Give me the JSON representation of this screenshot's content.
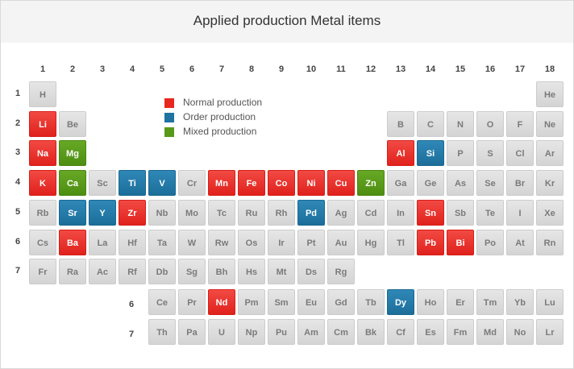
{
  "title": "Applied production Metal items",
  "colors": {
    "normal": "#e8271f",
    "order": "#1e73a1",
    "mixed": "#58991a",
    "default": "#dcdcdc"
  },
  "legend": [
    {
      "key": "normal",
      "label": "Normal production"
    },
    {
      "key": "order",
      "label": "Order production"
    },
    {
      "key": "mixed",
      "label": "Mixed production"
    }
  ],
  "groups": [
    "1",
    "2",
    "3",
    "4",
    "5",
    "6",
    "7",
    "8",
    "9",
    "10",
    "11",
    "12",
    "13",
    "14",
    "15",
    "16",
    "17",
    "18"
  ],
  "periods": [
    "1",
    "2",
    "3",
    "4",
    "5",
    "6",
    "7"
  ],
  "series_labels": [
    "6",
    "7"
  ],
  "main_rows": [
    [
      {
        "g": 1,
        "s": "H"
      },
      {
        "g": 18,
        "s": "He"
      }
    ],
    [
      {
        "g": 1,
        "s": "Li",
        "t": "normal"
      },
      {
        "g": 2,
        "s": "Be"
      },
      {
        "g": 13,
        "s": "B"
      },
      {
        "g": 14,
        "s": "C"
      },
      {
        "g": 15,
        "s": "N"
      },
      {
        "g": 16,
        "s": "O"
      },
      {
        "g": 17,
        "s": "F"
      },
      {
        "g": 18,
        "s": "Ne"
      }
    ],
    [
      {
        "g": 1,
        "s": "Na",
        "t": "normal"
      },
      {
        "g": 2,
        "s": "Mg",
        "t": "mixed"
      },
      {
        "g": 13,
        "s": "Al",
        "t": "normal"
      },
      {
        "g": 14,
        "s": "Si",
        "t": "order"
      },
      {
        "g": 15,
        "s": "P"
      },
      {
        "g": 16,
        "s": "S"
      },
      {
        "g": 17,
        "s": "Cl"
      },
      {
        "g": 18,
        "s": "Ar"
      }
    ],
    [
      {
        "g": 1,
        "s": "K",
        "t": "normal"
      },
      {
        "g": 2,
        "s": "Ca",
        "t": "mixed"
      },
      {
        "g": 3,
        "s": "Sc"
      },
      {
        "g": 4,
        "s": "Ti",
        "t": "order"
      },
      {
        "g": 5,
        "s": "V",
        "t": "order"
      },
      {
        "g": 6,
        "s": "Cr"
      },
      {
        "g": 7,
        "s": "Mn",
        "t": "normal"
      },
      {
        "g": 8,
        "s": "Fe",
        "t": "normal"
      },
      {
        "g": 9,
        "s": "Co",
        "t": "normal"
      },
      {
        "g": 10,
        "s": "Ni",
        "t": "normal"
      },
      {
        "g": 11,
        "s": "Cu",
        "t": "normal"
      },
      {
        "g": 12,
        "s": "Zn",
        "t": "mixed"
      },
      {
        "g": 13,
        "s": "Ga"
      },
      {
        "g": 14,
        "s": "Ge"
      },
      {
        "g": 15,
        "s": "As"
      },
      {
        "g": 16,
        "s": "Se"
      },
      {
        "g": 17,
        "s": "Br"
      },
      {
        "g": 18,
        "s": "Kr"
      }
    ],
    [
      {
        "g": 1,
        "s": "Rb"
      },
      {
        "g": 2,
        "s": "Sr",
        "t": "order"
      },
      {
        "g": 3,
        "s": "Y",
        "t": "order"
      },
      {
        "g": 4,
        "s": "Zr",
        "t": "normal"
      },
      {
        "g": 5,
        "s": "Nb"
      },
      {
        "g": 6,
        "s": "Mo"
      },
      {
        "g": 7,
        "s": "Tc"
      },
      {
        "g": 8,
        "s": "Ru"
      },
      {
        "g": 9,
        "s": "Rh"
      },
      {
        "g": 10,
        "s": "Pd",
        "t": "order"
      },
      {
        "g": 11,
        "s": "Ag"
      },
      {
        "g": 12,
        "s": "Cd"
      },
      {
        "g": 13,
        "s": "In"
      },
      {
        "g": 14,
        "s": "Sn",
        "t": "normal"
      },
      {
        "g": 15,
        "s": "Sb"
      },
      {
        "g": 16,
        "s": "Te"
      },
      {
        "g": 17,
        "s": "I"
      },
      {
        "g": 18,
        "s": "Xe"
      }
    ],
    [
      {
        "g": 1,
        "s": "Cs"
      },
      {
        "g": 2,
        "s": "Ba",
        "t": "normal"
      },
      {
        "g": 3,
        "s": "La"
      },
      {
        "g": 4,
        "s": "Hf"
      },
      {
        "g": 5,
        "s": "Ta"
      },
      {
        "g": 6,
        "s": "W"
      },
      {
        "g": 7,
        "s": "Rw"
      },
      {
        "g": 8,
        "s": "Os"
      },
      {
        "g": 9,
        "s": "Ir"
      },
      {
        "g": 10,
        "s": "Pt"
      },
      {
        "g": 11,
        "s": "Au"
      },
      {
        "g": 12,
        "s": "Hg"
      },
      {
        "g": 13,
        "s": "Tl"
      },
      {
        "g": 14,
        "s": "Pb",
        "t": "normal"
      },
      {
        "g": 15,
        "s": "Bi",
        "t": "normal"
      },
      {
        "g": 16,
        "s": "Po"
      },
      {
        "g": 17,
        "s": "At"
      },
      {
        "g": 18,
        "s": "Rn"
      }
    ],
    [
      {
        "g": 1,
        "s": "Fr"
      },
      {
        "g": 2,
        "s": "Ra"
      },
      {
        "g": 3,
        "s": "Ac"
      },
      {
        "g": 4,
        "s": "Rf"
      },
      {
        "g": 5,
        "s": "Db"
      },
      {
        "g": 6,
        "s": "Sg"
      },
      {
        "g": 7,
        "s": "Bh"
      },
      {
        "g": 8,
        "s": "Hs"
      },
      {
        "g": 9,
        "s": "Mt"
      },
      {
        "g": 10,
        "s": "Ds"
      },
      {
        "g": 11,
        "s": "Rg"
      }
    ]
  ],
  "series_rows": [
    [
      {
        "g": 5,
        "s": "Ce"
      },
      {
        "g": 6,
        "s": "Pr"
      },
      {
        "g": 7,
        "s": "Nd",
        "t": "normal"
      },
      {
        "g": 8,
        "s": "Pm"
      },
      {
        "g": 9,
        "s": "Sm"
      },
      {
        "g": 10,
        "s": "Eu"
      },
      {
        "g": 11,
        "s": "Gd"
      },
      {
        "g": 12,
        "s": "Tb"
      },
      {
        "g": 13,
        "s": "Dy",
        "t": "order"
      },
      {
        "g": 14,
        "s": "Ho"
      },
      {
        "g": 15,
        "s": "Er"
      },
      {
        "g": 16,
        "s": "Tm"
      },
      {
        "g": 17,
        "s": "Yb"
      },
      {
        "g": 18,
        "s": "Lu"
      }
    ],
    [
      {
        "g": 5,
        "s": "Th"
      },
      {
        "g": 6,
        "s": "Pa"
      },
      {
        "g": 7,
        "s": "U"
      },
      {
        "g": 8,
        "s": "Np"
      },
      {
        "g": 9,
        "s": "Pu"
      },
      {
        "g": 10,
        "s": "Am"
      },
      {
        "g": 11,
        "s": "Cm"
      },
      {
        "g": 12,
        "s": "Bk"
      },
      {
        "g": 13,
        "s": "Cf"
      },
      {
        "g": 14,
        "s": "Es"
      },
      {
        "g": 15,
        "s": "Fm"
      },
      {
        "g": 16,
        "s": "Md"
      },
      {
        "g": 17,
        "s": "No"
      },
      {
        "g": 18,
        "s": "Lr"
      }
    ]
  ]
}
